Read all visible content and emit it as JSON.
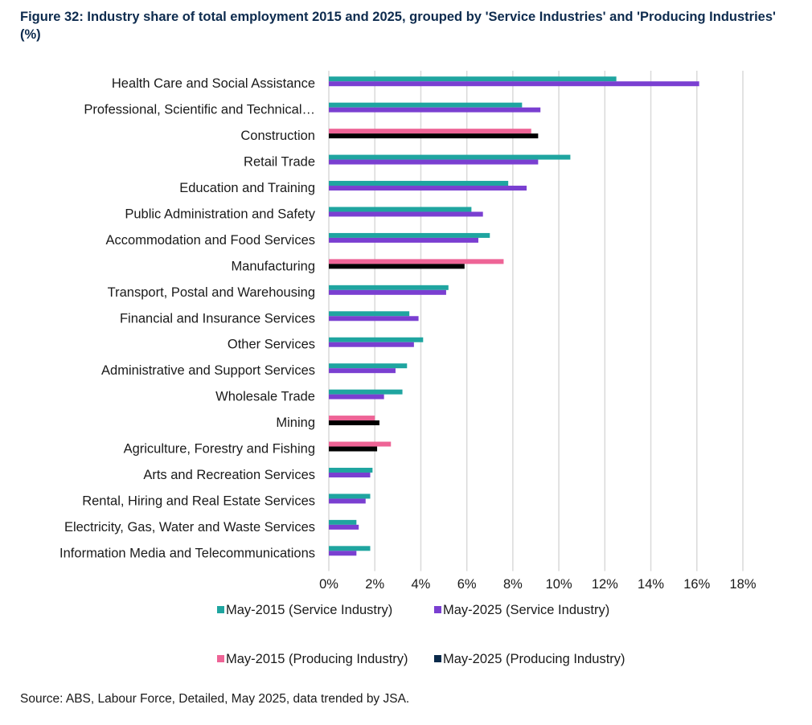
{
  "chart_data": {
    "type": "bar",
    "orientation": "horizontal",
    "title": "Figure 32: Industry share of total employment 2015 and 2025, grouped by 'Service Industries' and 'Producing Industries' (%)",
    "xlabel": "",
    "ylabel": "",
    "xlim": [
      0,
      18
    ],
    "x_ticks": [
      "0%",
      "2%",
      "4%",
      "6%",
      "8%",
      "10%",
      "12%",
      "14%",
      "16%",
      "18%"
    ],
    "grid": "vertical",
    "legend_position": "bottom",
    "source": "Source: ABS, Labour Force, Detailed, May 2025, data trended by JSA.",
    "series": [
      {
        "name": "May-2015 (Service Industry)",
        "color": "#1fa5a0"
      },
      {
        "name": "May-2025 (Service Industry)",
        "color": "#7a3fd1"
      },
      {
        "name": "May-2015 (Producing Industry)",
        "color": "#ee6496"
      },
      {
        "name": "May-2025 (Producing Industry)",
        "color": "#0a2a4a"
      }
    ],
    "categories": [
      {
        "label": "Health Care and Social Assistance",
        "group": "service",
        "v2015": 12.5,
        "v2025": 16.1
      },
      {
        "label": "Professional, Scientific and Technical…",
        "group": "service",
        "v2015": 8.4,
        "v2025": 9.2
      },
      {
        "label": "Construction",
        "group": "producing",
        "v2015": 8.8,
        "v2025": 9.1
      },
      {
        "label": "Retail Trade",
        "group": "service",
        "v2015": 10.5,
        "v2025": 9.1
      },
      {
        "label": "Education and Training",
        "group": "service",
        "v2015": 7.8,
        "v2025": 8.6
      },
      {
        "label": "Public Administration and Safety",
        "group": "service",
        "v2015": 6.2,
        "v2025": 6.7
      },
      {
        "label": "Accommodation and Food Services",
        "group": "service",
        "v2015": 7.0,
        "v2025": 6.5
      },
      {
        "label": "Manufacturing",
        "group": "producing",
        "v2015": 7.6,
        "v2025": 5.9
      },
      {
        "label": "Transport, Postal and Warehousing",
        "group": "service",
        "v2015": 5.2,
        "v2025": 5.1
      },
      {
        "label": "Financial and Insurance Services",
        "group": "service",
        "v2015": 3.5,
        "v2025": 3.9
      },
      {
        "label": "Other Services",
        "group": "service",
        "v2015": 4.1,
        "v2025": 3.7
      },
      {
        "label": "Administrative and Support Services",
        "group": "service",
        "v2015": 3.4,
        "v2025": 2.9
      },
      {
        "label": "Wholesale Trade",
        "group": "service",
        "v2015": 3.2,
        "v2025": 2.4
      },
      {
        "label": "Mining",
        "group": "producing",
        "v2015": 2.0,
        "v2025": 2.2
      },
      {
        "label": "Agriculture, Forestry and Fishing",
        "group": "producing",
        "v2015": 2.7,
        "v2025": 2.1
      },
      {
        "label": "Arts and Recreation Services",
        "group": "service",
        "v2015": 1.9,
        "v2025": 1.8
      },
      {
        "label": "Rental, Hiring and Real Estate Services",
        "group": "service",
        "v2015": 1.8,
        "v2025": 1.6
      },
      {
        "label": "Electricity, Gas, Water and Waste Services",
        "group": "service",
        "v2015": 1.2,
        "v2025": 1.3
      },
      {
        "label": "Information Media and Telecommunications",
        "group": "service",
        "v2015": 1.8,
        "v2025": 1.2
      }
    ]
  }
}
